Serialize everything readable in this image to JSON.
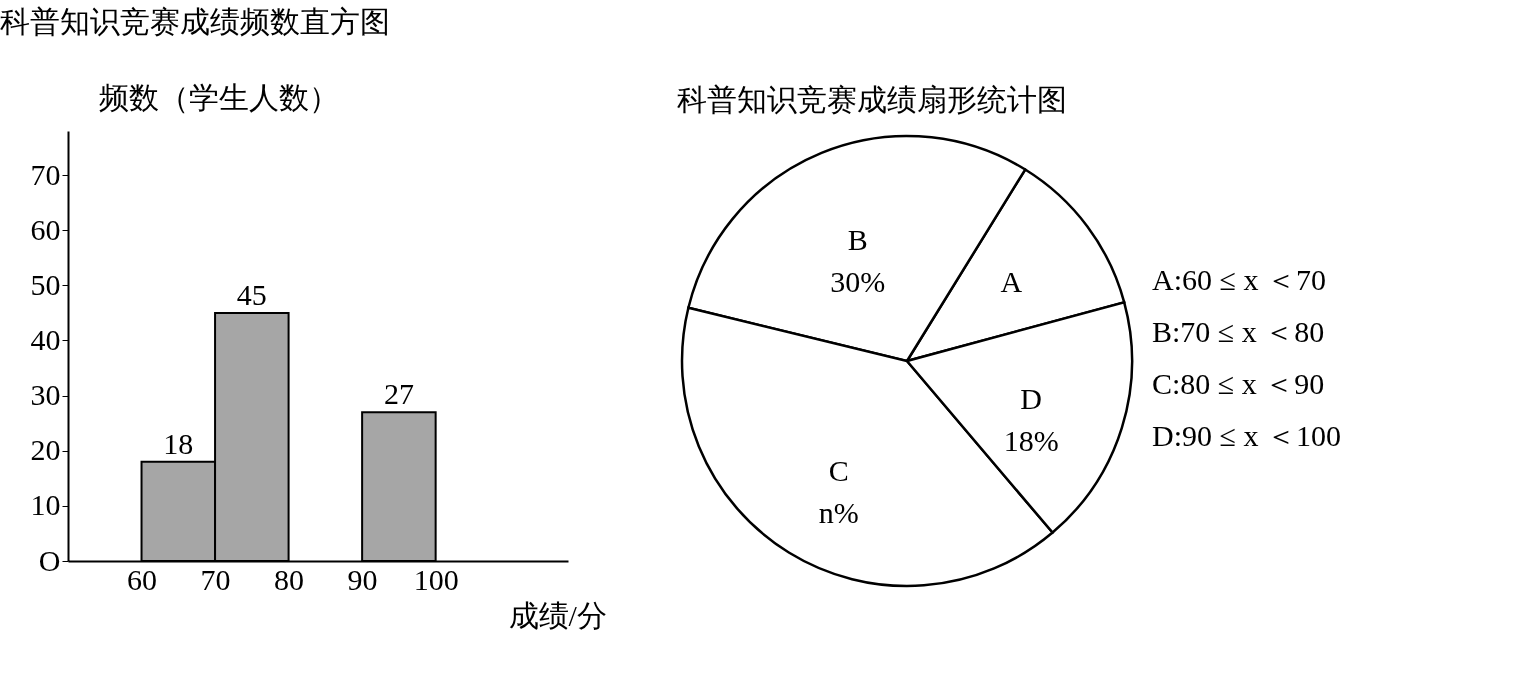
{
  "chart_data": [
    {
      "type": "histogram",
      "title": "科普知识竞赛成绩频数直方图",
      "xlabel": "成绩/分",
      "ylabel": "频数（学生人数）",
      "bins": [
        60,
        70,
        80,
        90,
        100
      ],
      "values": [
        18,
        45,
        null,
        27
      ],
      "value_labels": [
        "18",
        "45",
        null,
        "27"
      ],
      "color": "#a6a6a6",
      "xlim": [
        50,
        118
      ],
      "xticks": [
        60,
        70,
        80,
        90,
        100
      ],
      "ylim": [
        0,
        78
      ],
      "yticks": [
        {
          "value": 0,
          "label": "O"
        },
        10,
        20,
        30,
        40,
        50,
        60,
        70
      ],
      "grid": false
    },
    {
      "type": "pie",
      "title": "科普知识竞赛成绩扇形统计图",
      "categories": [
        "A",
        "B",
        "C",
        "D"
      ],
      "values": [
        12,
        30,
        40,
        18
      ],
      "colors": [
        "#ffffff",
        "#ffffff",
        "#ffffff",
        "#ffffff"
      ],
      "value_labels": [
        null,
        "30%",
        "n%",
        "18%"
      ],
      "annotations": [
        "A:60 ≤ x ＜70",
        "B:70 ≤ x ＜80",
        "C:80 ≤ x ＜90",
        "D:90 ≤ x ＜100"
      ]
    }
  ]
}
